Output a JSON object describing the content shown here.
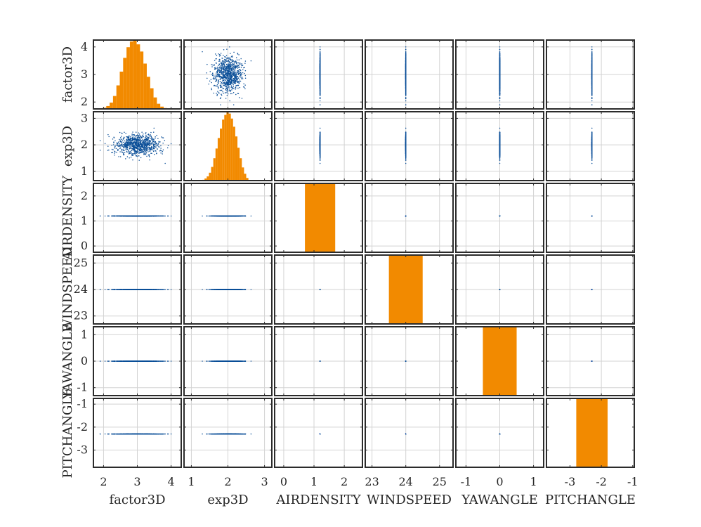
{
  "chart_data": {
    "type": "scatter",
    "title": "",
    "variables": [
      {
        "name": "factor3D",
        "ylim": [
          1.75,
          4.25
        ],
        "xlim": [
          1.7,
          4.3
        ],
        "ticks": [
          2,
          3,
          4
        ]
      },
      {
        "name": "exp3D",
        "ylim": [
          0.65,
          3.25
        ],
        "xlim": [
          0.8,
          3.2
        ],
        "ticks": [
          1,
          2,
          3
        ]
      },
      {
        "name": "AIRDENSITY",
        "ylim": [
          -0.25,
          2.5
        ],
        "xlim": [
          -0.3,
          2.6
        ],
        "ticks": [
          0,
          1,
          2
        ]
      },
      {
        "name": "WINDSPEED",
        "ylim": [
          22.7,
          25.3
        ],
        "xlim": [
          22.8,
          25.4
        ],
        "ticks": [
          23,
          24,
          25
        ]
      },
      {
        "name": "YAWANGLE",
        "ylim": [
          -1.3,
          1.3
        ],
        "xlim": [
          -1.3,
          1.3
        ],
        "ticks": [
          -1,
          0,
          1
        ]
      },
      {
        "name": "PITCHANGLE",
        "ylim": [
          -3.75,
          -0.75
        ],
        "xlim": [
          -3.75,
          -0.95
        ],
        "ticks": [
          -3,
          -2,
          -1
        ]
      }
    ],
    "samples": {
      "factor3D": {
        "distribution": "normal",
        "mean": 3.0,
        "std": 0.33,
        "range": [
          1.9,
          4.0
        ]
      },
      "exp3D": {
        "distribution": "normal",
        "mean": 2.0,
        "std": 0.2,
        "range": [
          1.3,
          2.7
        ]
      },
      "AIRDENSITY": {
        "constant": 1.2
      },
      "WINDSPEED": {
        "constant": 24
      },
      "YAWANGLE": {
        "constant": 0
      },
      "PITCHANGLE": {
        "constant": -2.3
      }
    },
    "histograms": {
      "factor3D": {
        "bins": [
          1.78,
          1.88,
          1.98,
          2.08,
          2.18,
          2.28,
          2.38,
          2.48,
          2.58,
          2.68,
          2.78,
          2.88,
          2.98,
          3.08,
          3.18,
          3.28,
          3.38,
          3.48,
          3.58,
          3.68,
          3.78,
          3.88,
          3.98,
          4.08
        ],
        "counts": [
          1,
          2,
          4,
          10,
          22,
          45,
          82,
          130,
          178,
          215,
          235,
          240,
          225,
          200,
          158,
          112,
          72,
          40,
          18,
          8,
          3,
          1,
          0
        ]
      },
      "exp3D": {
        "bins": [
          1.3,
          1.36,
          1.42,
          1.48,
          1.54,
          1.6,
          1.66,
          1.72,
          1.78,
          1.84,
          1.9,
          1.96,
          2.02,
          2.08,
          2.14,
          2.2,
          2.26,
          2.32,
          2.38,
          2.44,
          2.5,
          2.56
        ],
        "counts": [
          3,
          8,
          16,
          30,
          52,
          85,
          122,
          162,
          198,
          232,
          250,
          262,
          255,
          236,
          205,
          168,
          125,
          85,
          50,
          26,
          10
        ]
      },
      "AIRDENSITY": {
        "bins": [
          0.7,
          1.7
        ],
        "counts": [
          1
        ]
      },
      "WINDSPEED": {
        "bins": [
          23.5,
          24.5
        ],
        "counts": [
          1
        ]
      },
      "YAWANGLE": {
        "bins": [
          -0.5,
          0.5
        ],
        "counts": [
          1
        ]
      },
      "PITCHANGLE": {
        "bins": [
          -2.8,
          -1.8
        ],
        "counts": [
          1
        ]
      }
    },
    "colors": {
      "scatter": "#0b4f98",
      "histogram": "#f28a00",
      "frame": "#2b2b2b",
      "grid": "#d3d3d3"
    },
    "grid": true
  }
}
